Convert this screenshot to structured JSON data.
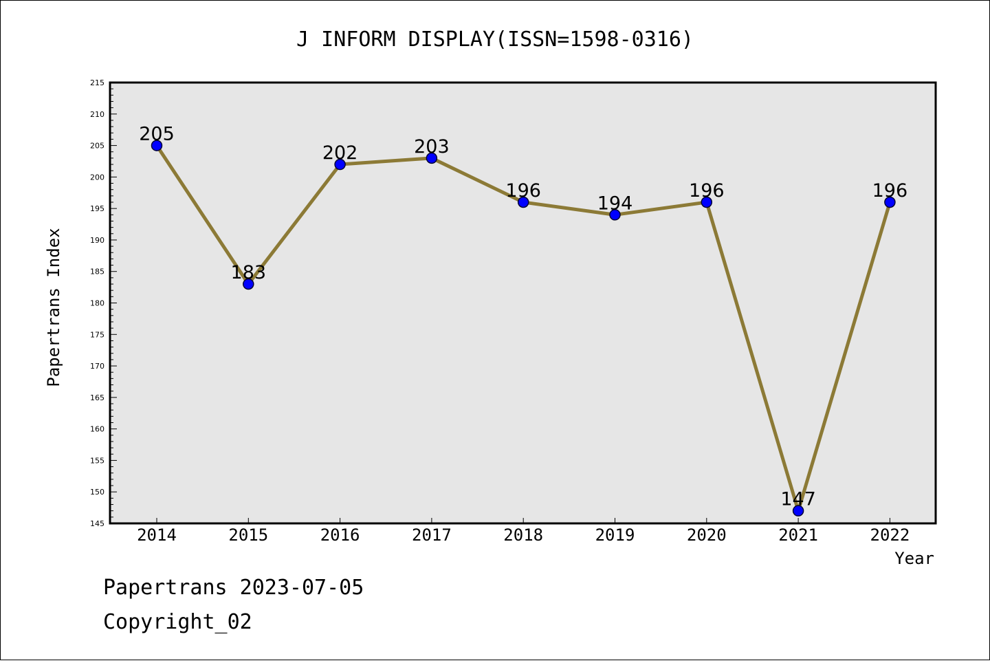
{
  "chart_data": {
    "type": "line",
    "title": "J INFORM DISPLAY(ISSN=1598-0316)",
    "xlabel": "Year",
    "ylabel": "Papertrans Index",
    "categories": [
      "2014",
      "2015",
      "2016",
      "2017",
      "2018",
      "2019",
      "2020",
      "2021",
      "2022"
    ],
    "series": [
      {
        "values": [
          205,
          183,
          202,
          203,
          196,
          194,
          196,
          147,
          196
        ]
      }
    ],
    "data_labels": [
      "205",
      "183",
      "202",
      "203",
      "196",
      "194",
      "196",
      "147",
      "196"
    ],
    "ylim": [
      145,
      215
    ],
    "yticks": [
      "145",
      "150",
      "155",
      "160",
      "165",
      "170",
      "175",
      "180",
      "185",
      "190",
      "195",
      "200",
      "205",
      "210",
      "215"
    ],
    "grid": false,
    "colors": {
      "line": "#8c7a36",
      "marker": "#0000ff",
      "plot_background": "#e6e6e6"
    }
  },
  "footer": {
    "source": "Papertrans 2023-07-05",
    "copyright": "Copyright_02"
  }
}
